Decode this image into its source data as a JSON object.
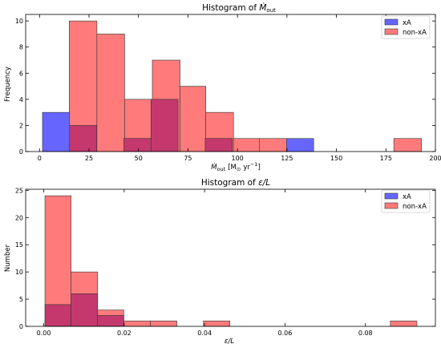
{
  "colors": {
    "xA": "#6666ff",
    "non_xA": "#ff7b7b",
    "overlap": "#c4386e",
    "edge": "#333333"
  },
  "chart_data": [
    {
      "type": "bar",
      "title_prefix": "Histogram of ",
      "title_var": "Ṁ",
      "title_sub": "out",
      "xlabel_var": "Ṁ",
      "xlabel_sub": "out",
      "xlabel_unit_open": "[M",
      "xlabel_unit_sun": "⊙",
      "xlabel_unit_yr": "yr",
      "xlabel_unit_exp": "−1",
      "xlabel_unit_close": "]",
      "ylabel": "Frequency",
      "xlim": [
        -7,
        200
      ],
      "ylim": [
        0,
        10.5
      ],
      "xticks": [
        0,
        25,
        50,
        75,
        100,
        125,
        150,
        175,
        200
      ],
      "yticks": [
        0,
        2,
        4,
        6,
        8,
        10
      ],
      "legend_position": "top-right",
      "series": [
        {
          "name": "xA",
          "bins": [
            [
              1.5,
              15.2,
              3
            ],
            [
              15.2,
              28.9,
              2
            ],
            [
              42.6,
              56.3,
              1
            ],
            [
              56.3,
              70.0,
              4
            ],
            [
              83.7,
              97.4,
              1
            ],
            [
              124.8,
              138.5,
              1
            ]
          ]
        },
        {
          "name": "non-xA",
          "bins": [
            [
              15,
              29,
              10
            ],
            [
              29,
              43,
              9
            ],
            [
              43,
              57,
              4
            ],
            [
              57,
              71,
              7
            ],
            [
              71,
              84,
              5
            ],
            [
              84,
              98,
              3
            ],
            [
              98,
              111,
              1
            ],
            [
              111,
              125,
              1
            ],
            [
              179,
              193,
              1
            ]
          ]
        }
      ]
    },
    {
      "type": "bar",
      "title_prefix": "Histogram of ",
      "title_var": "ε/L",
      "xlabel": "ε/L",
      "ylabel": "Number",
      "xlim": [
        -0.0045,
        0.0974
      ],
      "ylim": [
        0,
        25.2
      ],
      "xticks": [
        0.0,
        0.02,
        0.04,
        0.06,
        0.08
      ],
      "xtick_labels": [
        "0.00",
        "0.02",
        "0.04",
        "0.06",
        "0.08"
      ],
      "yticks": [
        0,
        5,
        10,
        15,
        20,
        25
      ],
      "legend_position": "top-right",
      "series": [
        {
          "name": "xA",
          "bins": [
            [
              0.0003,
              0.0068,
              4
            ],
            [
              0.0068,
              0.0134,
              6
            ],
            [
              0.0134,
              0.0199,
              2
            ]
          ]
        },
        {
          "name": "non-xA",
          "bins": [
            [
              0.0003,
              0.0068,
              24
            ],
            [
              0.0068,
              0.0134,
              10
            ],
            [
              0.0134,
              0.0199,
              3
            ],
            [
              0.0199,
              0.0265,
              1
            ],
            [
              0.0265,
              0.0331,
              1
            ],
            [
              0.0397,
              0.0463,
              1
            ],
            [
              0.0862,
              0.0928,
              1
            ]
          ]
        }
      ]
    }
  ]
}
